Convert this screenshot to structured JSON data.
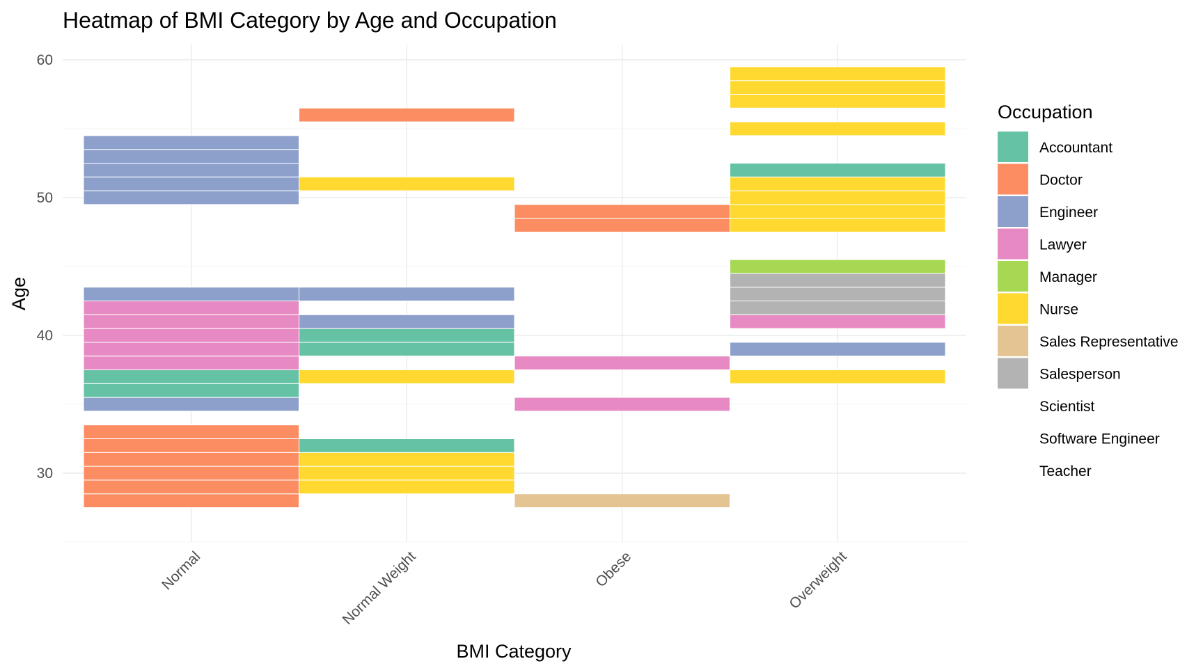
{
  "chart_data": {
    "type": "heatmap",
    "title": "Heatmap of BMI Category by Age and Occupation",
    "xlabel": "BMI Category",
    "ylabel": "Age",
    "categories": [
      "Normal",
      "Normal Weight",
      "Obese",
      "Overweight"
    ],
    "ylim": [
      25,
      60
    ],
    "yticks": [
      30,
      40,
      50,
      60
    ],
    "grid": true,
    "legend": {
      "title": "Occupation",
      "placement": "right",
      "entries": [
        {
          "name": "Accountant",
          "color": "#66c2a5"
        },
        {
          "name": "Doctor",
          "color": "#fc8d62"
        },
        {
          "name": "Engineer",
          "color": "#8da0cb"
        },
        {
          "name": "Lawyer",
          "color": "#e78ac3"
        },
        {
          "name": "Manager",
          "color": "#a6d854"
        },
        {
          "name": "Nurse",
          "color": "#ffd92f"
        },
        {
          "name": "Sales Representative",
          "color": "#e5c494"
        },
        {
          "name": "Salesperson",
          "color": "#b3b3b3"
        },
        {
          "name": "Scientist",
          "color": "none"
        },
        {
          "name": "Software Engineer",
          "color": "none"
        },
        {
          "name": "Teacher",
          "color": "none"
        }
      ]
    },
    "cells": [
      {
        "bmi": "Normal",
        "age": 28,
        "occupation": "Doctor"
      },
      {
        "bmi": "Normal",
        "age": 29,
        "occupation": "Doctor"
      },
      {
        "bmi": "Normal",
        "age": 30,
        "occupation": "Doctor"
      },
      {
        "bmi": "Normal",
        "age": 31,
        "occupation": "Doctor"
      },
      {
        "bmi": "Normal",
        "age": 32,
        "occupation": "Doctor"
      },
      {
        "bmi": "Normal",
        "age": 33,
        "occupation": "Doctor"
      },
      {
        "bmi": "Normal",
        "age": 35,
        "occupation": "Engineer"
      },
      {
        "bmi": "Normal",
        "age": 36,
        "occupation": "Accountant"
      },
      {
        "bmi": "Normal",
        "age": 37,
        "occupation": "Accountant"
      },
      {
        "bmi": "Normal",
        "age": 38,
        "occupation": "Lawyer"
      },
      {
        "bmi": "Normal",
        "age": 39,
        "occupation": "Lawyer"
      },
      {
        "bmi": "Normal",
        "age": 40,
        "occupation": "Lawyer"
      },
      {
        "bmi": "Normal",
        "age": 41,
        "occupation": "Lawyer"
      },
      {
        "bmi": "Normal",
        "age": 42,
        "occupation": "Lawyer"
      },
      {
        "bmi": "Normal",
        "age": 43,
        "occupation": "Engineer"
      },
      {
        "bmi": "Normal",
        "age": 50,
        "occupation": "Engineer"
      },
      {
        "bmi": "Normal",
        "age": 51,
        "occupation": "Engineer"
      },
      {
        "bmi": "Normal",
        "age": 52,
        "occupation": "Engineer"
      },
      {
        "bmi": "Normal",
        "age": 53,
        "occupation": "Engineer"
      },
      {
        "bmi": "Normal",
        "age": 54,
        "occupation": "Engineer"
      },
      {
        "bmi": "Normal Weight",
        "age": 29,
        "occupation": "Nurse"
      },
      {
        "bmi": "Normal Weight",
        "age": 30,
        "occupation": "Nurse"
      },
      {
        "bmi": "Normal Weight",
        "age": 31,
        "occupation": "Nurse"
      },
      {
        "bmi": "Normal Weight",
        "age": 32,
        "occupation": "Accountant"
      },
      {
        "bmi": "Normal Weight",
        "age": 37,
        "occupation": "Nurse"
      },
      {
        "bmi": "Normal Weight",
        "age": 39,
        "occupation": "Accountant"
      },
      {
        "bmi": "Normal Weight",
        "age": 40,
        "occupation": "Accountant"
      },
      {
        "bmi": "Normal Weight",
        "age": 41,
        "occupation": "Engineer"
      },
      {
        "bmi": "Normal Weight",
        "age": 43,
        "occupation": "Engineer"
      },
      {
        "bmi": "Normal Weight",
        "age": 51,
        "occupation": "Nurse"
      },
      {
        "bmi": "Normal Weight",
        "age": 56,
        "occupation": "Doctor"
      },
      {
        "bmi": "Obese",
        "age": 28,
        "occupation": "Sales Representative"
      },
      {
        "bmi": "Obese",
        "age": 35,
        "occupation": "Lawyer"
      },
      {
        "bmi": "Obese",
        "age": 38,
        "occupation": "Lawyer"
      },
      {
        "bmi": "Obese",
        "age": 48,
        "occupation": "Doctor"
      },
      {
        "bmi": "Obese",
        "age": 49,
        "occupation": "Doctor"
      },
      {
        "bmi": "Overweight",
        "age": 37,
        "occupation": "Nurse"
      },
      {
        "bmi": "Overweight",
        "age": 39,
        "occupation": "Engineer"
      },
      {
        "bmi": "Overweight",
        "age": 41,
        "occupation": "Lawyer"
      },
      {
        "bmi": "Overweight",
        "age": 42,
        "occupation": "Salesperson"
      },
      {
        "bmi": "Overweight",
        "age": 43,
        "occupation": "Salesperson"
      },
      {
        "bmi": "Overweight",
        "age": 44,
        "occupation": "Salesperson"
      },
      {
        "bmi": "Overweight",
        "age": 45,
        "occupation": "Manager"
      },
      {
        "bmi": "Overweight",
        "age": 48,
        "occupation": "Nurse"
      },
      {
        "bmi": "Overweight",
        "age": 49,
        "occupation": "Nurse"
      },
      {
        "bmi": "Overweight",
        "age": 50,
        "occupation": "Nurse"
      },
      {
        "bmi": "Overweight",
        "age": 51,
        "occupation": "Nurse"
      },
      {
        "bmi": "Overweight",
        "age": 52,
        "occupation": "Accountant"
      },
      {
        "bmi": "Overweight",
        "age": 55,
        "occupation": "Nurse"
      },
      {
        "bmi": "Overweight",
        "age": 57,
        "occupation": "Nurse"
      },
      {
        "bmi": "Overweight",
        "age": 58,
        "occupation": "Nurse"
      },
      {
        "bmi": "Overweight",
        "age": 59,
        "occupation": "Nurse"
      }
    ]
  }
}
